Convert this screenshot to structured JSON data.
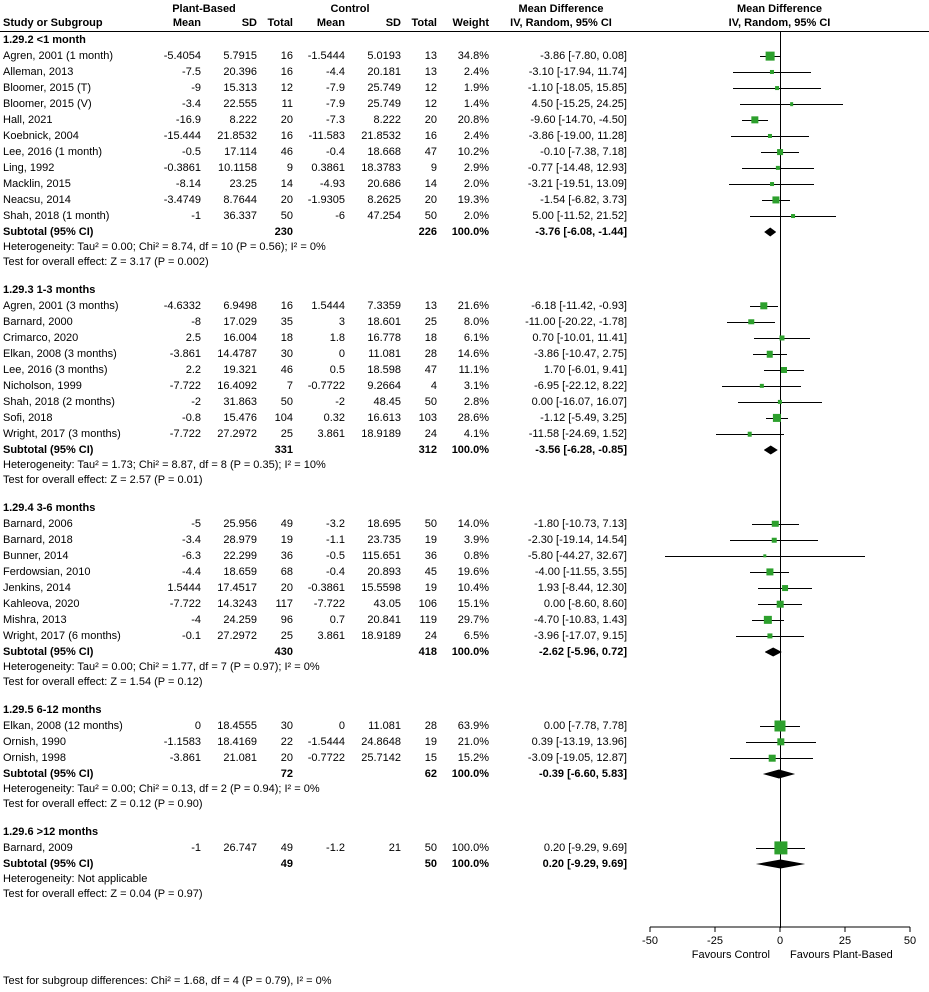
{
  "header": {
    "study_or_subgroup": "Study or Subgroup",
    "plant_based": "Plant-Based",
    "control": "Control",
    "mean": "Mean",
    "sd": "SD",
    "total": "Total",
    "weight": "Weight",
    "mean_difference": "Mean Difference",
    "ci_label": "IV, Random, 95% CI"
  },
  "chart_data": {
    "type": "forest",
    "title": "",
    "axis": {
      "min": -50,
      "max": 50,
      "ticks": [
        -50,
        -25,
        0,
        25,
        50
      ]
    },
    "xlabel_left": "Favours Control",
    "xlabel_right": "Favours Plant-Based",
    "colors": {
      "marker": "#2DA02D",
      "diamond": "#000000",
      "line": "#000000"
    },
    "subgroups": [
      {
        "label": "1.29.2 <1 month",
        "studies": [
          {
            "study": "Agren, 2001 (1 month)",
            "mean1": -5.4054,
            "sd1": 5.7915,
            "n1": 16,
            "mean2": -1.5444,
            "sd2": 5.0193,
            "n2": 13,
            "weight": "34.8%",
            "md": -3.86,
            "lo": -7.8,
            "hi": 0.08
          },
          {
            "study": "Alleman, 2013",
            "mean1": -7.5,
            "sd1": 20.396,
            "n1": 16,
            "mean2": -4.4,
            "sd2": 20.181,
            "n2": 13,
            "weight": "2.4%",
            "md": -3.1,
            "lo": -17.94,
            "hi": 11.74
          },
          {
            "study": "Bloomer, 2015 (T)",
            "mean1": -9,
            "sd1": 15.313,
            "n1": 12,
            "mean2": -7.9,
            "sd2": 25.749,
            "n2": 12,
            "weight": "1.9%",
            "md": -1.1,
            "lo": -18.05,
            "hi": 15.85
          },
          {
            "study": "Bloomer, 2015 (V)",
            "mean1": -3.4,
            "sd1": 22.555,
            "n1": 11,
            "mean2": -7.9,
            "sd2": 25.749,
            "n2": 12,
            "weight": "1.4%",
            "md": 4.5,
            "lo": -15.25,
            "hi": 24.25
          },
          {
            "study": "Hall, 2021",
            "mean1": -16.9,
            "sd1": 8.222,
            "n1": 20,
            "mean2": -7.3,
            "sd2": 8.222,
            "n2": 20,
            "weight": "20.8%",
            "md": -9.6,
            "lo": -14.7,
            "hi": -4.5
          },
          {
            "study": "Koebnick, 2004",
            "mean1": -15.444,
            "sd1": 21.8532,
            "n1": 16,
            "mean2": -11.583,
            "sd2": 21.8532,
            "n2": 16,
            "weight": "2.4%",
            "md": -3.86,
            "lo": -19,
            "hi": 11.28
          },
          {
            "study": "Lee, 2016 (1 month)",
            "mean1": -0.5,
            "sd1": 17.114,
            "n1": 46,
            "mean2": -0.4,
            "sd2": 18.668,
            "n2": 47,
            "weight": "10.2%",
            "md": -0.1,
            "lo": -7.38,
            "hi": 7.18
          },
          {
            "study": "Ling, 1992",
            "mean1": -0.3861,
            "sd1": 10.1158,
            "n1": 9,
            "mean2": 0.3861,
            "sd2": 18.3783,
            "n2": 9,
            "weight": "2.9%",
            "md": -0.77,
            "lo": -14.48,
            "hi": 12.93
          },
          {
            "study": "Macklin, 2015",
            "mean1": -8.14,
            "sd1": 23.25,
            "n1": 14,
            "mean2": -4.93,
            "sd2": 20.686,
            "n2": 14,
            "weight": "2.0%",
            "md": -3.21,
            "lo": -19.51,
            "hi": 13.09
          },
          {
            "study": "Neacsu, 2014",
            "mean1": -3.4749,
            "sd1": 8.7644,
            "n1": 20,
            "mean2": -1.9305,
            "sd2": 8.2625,
            "n2": 20,
            "weight": "19.3%",
            "md": -1.54,
            "lo": -6.82,
            "hi": 3.73
          },
          {
            "study": "Shah, 2018 (1 month)",
            "mean1": -1,
            "sd1": 36.337,
            "n1": 50,
            "mean2": -6,
            "sd2": 47.254,
            "n2": 50,
            "weight": "2.0%",
            "md": 5,
            "lo": -11.52,
            "hi": 21.52
          }
        ],
        "subtotal": {
          "label": "Subtotal (95% CI)",
          "n1": 230,
          "n2": 226,
          "weight": "100.0%",
          "md": -3.76,
          "lo": -6.08,
          "hi": -1.44
        },
        "heterogeneity": "Heterogeneity: Tau² = 0.00; Chi² = 8.74, df = 10 (P = 0.56); I² = 0%",
        "overall": "Test for overall effect: Z = 3.17 (P = 0.002)"
      },
      {
        "label": "1.29.3 1-3 months",
        "studies": [
          {
            "study": "Agren, 2001 (3 months)",
            "mean1": -4.6332,
            "sd1": 6.9498,
            "n1": 16,
            "mean2": 1.5444,
            "sd2": 7.3359,
            "n2": 13,
            "weight": "21.6%",
            "md": -6.18,
            "lo": -11.42,
            "hi": -0.93
          },
          {
            "study": "Barnard, 2000",
            "mean1": -8,
            "sd1": 17.029,
            "n1": 35,
            "mean2": 3,
            "sd2": 18.601,
            "n2": 25,
            "weight": "8.0%",
            "md": -11,
            "lo": -20.22,
            "hi": -1.78
          },
          {
            "study": "Crimarco, 2020",
            "mean1": 2.5,
            "sd1": 16.004,
            "n1": 18,
            "mean2": 1.8,
            "sd2": 16.778,
            "n2": 18,
            "weight": "6.1%",
            "md": 0.7,
            "lo": -10.01,
            "hi": 11.41
          },
          {
            "study": "Elkan, 2008 (3 months)",
            "mean1": -3.861,
            "sd1": 14.4787,
            "n1": 30,
            "mean2": 0,
            "sd2": 11.081,
            "n2": 28,
            "weight": "14.6%",
            "md": -3.86,
            "lo": -10.47,
            "hi": 2.75
          },
          {
            "study": "Lee, 2016 (3 months)",
            "mean1": 2.2,
            "sd1": 19.321,
            "n1": 46,
            "mean2": 0.5,
            "sd2": 18.598,
            "n2": 47,
            "weight": "11.1%",
            "md": 1.7,
            "lo": -6.01,
            "hi": 9.41
          },
          {
            "study": "Nicholson, 1999",
            "mean1": -7.722,
            "sd1": 16.4092,
            "n1": 7,
            "mean2": -0.7722,
            "sd2": 9.2664,
            "n2": 4,
            "weight": "3.1%",
            "md": -6.95,
            "lo": -22.12,
            "hi": 8.22
          },
          {
            "study": "Shah, 2018 (2 months)",
            "mean1": -2,
            "sd1": 31.863,
            "n1": 50,
            "mean2": -2,
            "sd2": 48.45,
            "n2": 50,
            "weight": "2.8%",
            "md": 0,
            "lo": -16.07,
            "hi": 16.07
          },
          {
            "study": "Sofi, 2018",
            "mean1": -0.8,
            "sd1": 15.476,
            "n1": 104,
            "mean2": 0.32,
            "sd2": 16.613,
            "n2": 103,
            "weight": "28.6%",
            "md": -1.12,
            "lo": -5.49,
            "hi": 3.25
          },
          {
            "study": "Wright, 2017 (3 months)",
            "mean1": -7.722,
            "sd1": 27.2972,
            "n1": 25,
            "mean2": 3.861,
            "sd2": 18.9189,
            "n2": 24,
            "weight": "4.1%",
            "md": -11.58,
            "lo": -24.69,
            "hi": 1.52
          }
        ],
        "subtotal": {
          "label": "Subtotal (95% CI)",
          "n1": 331,
          "n2": 312,
          "weight": "100.0%",
          "md": -3.56,
          "lo": -6.28,
          "hi": -0.85
        },
        "heterogeneity": "Heterogeneity: Tau² = 1.73; Chi² = 8.87, df = 8 (P = 0.35); I² = 10%",
        "overall": "Test for overall effect: Z = 2.57 (P = 0.01)"
      },
      {
        "label": "1.29.4 3-6 months",
        "studies": [
          {
            "study": "Barnard, 2006",
            "mean1": -5,
            "sd1": 25.956,
            "n1": 49,
            "mean2": -3.2,
            "sd2": 18.695,
            "n2": 50,
            "weight": "14.0%",
            "md": -1.8,
            "lo": -10.73,
            "hi": 7.13
          },
          {
            "study": "Barnard, 2018",
            "mean1": -3.4,
            "sd1": 28.979,
            "n1": 19,
            "mean2": -1.1,
            "sd2": 23.735,
            "n2": 19,
            "weight": "3.9%",
            "md": -2.3,
            "lo": -19.14,
            "hi": 14.54
          },
          {
            "study": "Bunner, 2014",
            "mean1": -6.3,
            "sd1": 22.299,
            "n1": 36,
            "mean2": -0.5,
            "sd2": 115.651,
            "n2": 36,
            "weight": "0.8%",
            "md": -5.8,
            "lo": -44.27,
            "hi": 32.67
          },
          {
            "study": "Ferdowsian, 2010",
            "mean1": -4.4,
            "sd1": 18.659,
            "n1": 68,
            "mean2": -0.4,
            "sd2": 20.893,
            "n2": 45,
            "weight": "19.6%",
            "md": -4,
            "lo": -11.55,
            "hi": 3.55
          },
          {
            "study": "Jenkins, 2014",
            "mean1": 1.5444,
            "sd1": 17.4517,
            "n1": 20,
            "mean2": -0.3861,
            "sd2": 15.5598,
            "n2": 19,
            "weight": "10.4%",
            "md": 1.93,
            "lo": -8.44,
            "hi": 12.3
          },
          {
            "study": "Kahleova, 2020",
            "mean1": -7.722,
            "sd1": 14.3243,
            "n1": 117,
            "mean2": -7.722,
            "sd2": 43.05,
            "n2": 106,
            "weight": "15.1%",
            "md": 0,
            "lo": -8.6,
            "hi": 8.6
          },
          {
            "study": "Mishra, 2013",
            "mean1": -4,
            "sd1": 24.259,
            "n1": 96,
            "mean2": 0.7,
            "sd2": 20.841,
            "n2": 119,
            "weight": "29.7%",
            "md": -4.7,
            "lo": -10.83,
            "hi": 1.43
          },
          {
            "study": "Wright, 2017 (6 months)",
            "mean1": -0.1,
            "sd1": 27.2972,
            "n1": 25,
            "mean2": 3.861,
            "sd2": 18.9189,
            "n2": 24,
            "weight": "6.5%",
            "md": -3.96,
            "lo": -17.07,
            "hi": 9.15
          }
        ],
        "subtotal": {
          "label": "Subtotal (95% CI)",
          "n1": 430,
          "n2": 418,
          "weight": "100.0%",
          "md": -2.62,
          "lo": -5.96,
          "hi": 0.72
        },
        "heterogeneity": "Heterogeneity: Tau² = 0.00; Chi² = 1.77, df = 7 (P = 0.97); I² = 0%",
        "overall": "Test for overall effect: Z = 1.54 (P = 0.12)"
      },
      {
        "label": "1.29.5 6-12 months",
        "studies": [
          {
            "study": "Elkan, 2008 (12 months)",
            "mean1": 0,
            "sd1": 18.4555,
            "n1": 30,
            "mean2": 0,
            "sd2": 11.081,
            "n2": 28,
            "weight": "63.9%",
            "md": 0,
            "lo": -7.78,
            "hi": 7.78
          },
          {
            "study": "Ornish, 1990",
            "mean1": -1.1583,
            "sd1": 18.4169,
            "n1": 22,
            "mean2": -1.5444,
            "sd2": 24.8648,
            "n2": 19,
            "weight": "21.0%",
            "md": 0.39,
            "lo": -13.19,
            "hi": 13.96
          },
          {
            "study": "Ornish, 1998",
            "mean1": -3.861,
            "sd1": 21.081,
            "n1": 20,
            "mean2": -0.7722,
            "sd2": 25.7142,
            "n2": 15,
            "weight": "15.2%",
            "md": -3.09,
            "lo": -19.05,
            "hi": 12.87
          }
        ],
        "subtotal": {
          "label": "Subtotal (95% CI)",
          "n1": 72,
          "n2": 62,
          "weight": "100.0%",
          "md": -0.39,
          "lo": -6.6,
          "hi": 5.83
        },
        "heterogeneity": "Heterogeneity: Tau² = 0.00; Chi² = 0.13, df = 2 (P = 0.94); I² = 0%",
        "overall": "Test for overall effect: Z = 0.12 (P = 0.90)"
      },
      {
        "label": "1.29.6 >12 months",
        "studies": [
          {
            "study": "Barnard, 2009",
            "mean1": -1,
            "sd1": 26.747,
            "n1": 49,
            "mean2": -1.2,
            "sd2": 21,
            "n2": 50,
            "weight": "100.0%",
            "md": 0.2,
            "lo": -9.29,
            "hi": 9.69
          }
        ],
        "subtotal": {
          "label": "Subtotal (95% CI)",
          "n1": 49,
          "n2": 50,
          "weight": "100.0%",
          "md": 0.2,
          "lo": -9.29,
          "hi": 9.69
        },
        "heterogeneity": "Heterogeneity: Not applicable",
        "overall": "Test for overall effect: Z = 0.04 (P = 0.97)"
      }
    ]
  },
  "footer": {
    "subgroup_test": "Test for subgroup differences: Chi² = 1.68, df = 4 (P = 0.79), I² = 0%"
  }
}
